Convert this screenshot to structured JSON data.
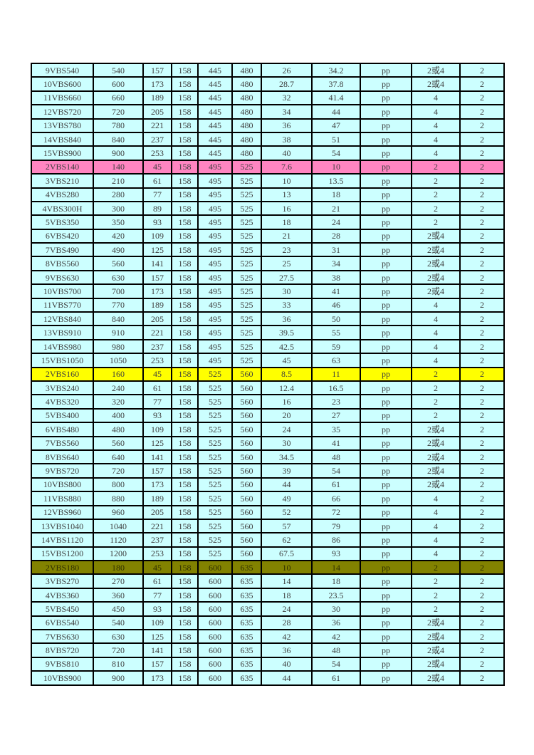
{
  "colors": {
    "cell_background": "#ccffff",
    "highlight_pink": "#ff85c1",
    "highlight_yellow": "#ffff00",
    "highlight_olive": "#828200",
    "border": "#000000",
    "text": "#3e3e3e",
    "page_background": "#ffffff"
  },
  "table": {
    "rows": [
      {
        "highlight": "none",
        "cells": [
          "9VBS540",
          "540",
          "157",
          "158",
          "445",
          "480",
          "26",
          "34.2",
          "pp",
          "2或4",
          "2"
        ]
      },
      {
        "highlight": "none",
        "cells": [
          "10VBS600",
          "600",
          "173",
          "158",
          "445",
          "480",
          "28.7",
          "37.8",
          "pp",
          "2或4",
          "2"
        ]
      },
      {
        "highlight": "none",
        "cells": [
          "11VBS660",
          "660",
          "189",
          "158",
          "445",
          "480",
          "32",
          "41.4",
          "pp",
          "4",
          "2"
        ]
      },
      {
        "highlight": "none",
        "cells": [
          "12VBS720",
          "720",
          "205",
          "158",
          "445",
          "480",
          "34",
          "44",
          "pp",
          "4",
          "2"
        ]
      },
      {
        "highlight": "none",
        "cells": [
          "13VBS780",
          "780",
          "221",
          "158",
          "445",
          "480",
          "36",
          "47",
          "pp",
          "4",
          "2"
        ]
      },
      {
        "highlight": "none",
        "cells": [
          "14VBS840",
          "840",
          "237",
          "158",
          "445",
          "480",
          "38",
          "51",
          "pp",
          "4",
          "2"
        ]
      },
      {
        "highlight": "none",
        "cells": [
          "15VBS900",
          "900",
          "253",
          "158",
          "445",
          "480",
          "40",
          "54",
          "pp",
          "4",
          "2"
        ]
      },
      {
        "highlight": "pink",
        "cells": [
          "2VBS140",
          "140",
          "45",
          "158",
          "495",
          "525",
          "7.6",
          "10",
          "pp",
          "2",
          "2"
        ]
      },
      {
        "highlight": "none",
        "cells": [
          "3VBS210",
          "210",
          "61",
          "158",
          "495",
          "525",
          "10",
          "13.5",
          "pp",
          "2",
          "2"
        ]
      },
      {
        "highlight": "none",
        "cells": [
          "4VBS280",
          "280",
          "77",
          "158",
          "495",
          "525",
          "13",
          "18",
          "pp",
          "2",
          "2"
        ]
      },
      {
        "highlight": "none",
        "cells": [
          "4VBS300H",
          "300",
          "89",
          "158",
          "495",
          "525",
          "16",
          "21",
          "pp",
          "2",
          "2"
        ]
      },
      {
        "highlight": "none",
        "cells": [
          "5VBS350",
          "350",
          "93",
          "158",
          "495",
          "525",
          "18",
          "24",
          "pp",
          "2",
          "2"
        ]
      },
      {
        "highlight": "none",
        "cells": [
          "6VBS420",
          "420",
          "109",
          "158",
          "495",
          "525",
          "21",
          "28",
          "pp",
          "2或4",
          "2"
        ]
      },
      {
        "highlight": "none",
        "cells": [
          "7VBS490",
          "490",
          "125",
          "158",
          "495",
          "525",
          "23",
          "31",
          "pp",
          "2或4",
          "2"
        ]
      },
      {
        "highlight": "none",
        "cells": [
          "8VBS560",
          "560",
          "141",
          "158",
          "495",
          "525",
          "25",
          "34",
          "pp",
          "2或4",
          "2"
        ]
      },
      {
        "highlight": "none",
        "cells": [
          "9VBS630",
          "630",
          "157",
          "158",
          "495",
          "525",
          "27.5",
          "38",
          "pp",
          "2或4",
          "2"
        ]
      },
      {
        "highlight": "none",
        "cells": [
          "10VBS700",
          "700",
          "173",
          "158",
          "495",
          "525",
          "30",
          "41",
          "pp",
          "2或4",
          "2"
        ]
      },
      {
        "highlight": "none",
        "cells": [
          "11VBS770",
          "770",
          "189",
          "158",
          "495",
          "525",
          "33",
          "46",
          "pp",
          "4",
          "2"
        ]
      },
      {
        "highlight": "none",
        "cells": [
          "12VBS840",
          "840",
          "205",
          "158",
          "495",
          "525",
          "36",
          "50",
          "pp",
          "4",
          "2"
        ]
      },
      {
        "highlight": "none",
        "cells": [
          "13VBS910",
          "910",
          "221",
          "158",
          "495",
          "525",
          "39.5",
          "55",
          "pp",
          "4",
          "2"
        ]
      },
      {
        "highlight": "none",
        "cells": [
          "14VBS980",
          "980",
          "237",
          "158",
          "495",
          "525",
          "42.5",
          "59",
          "pp",
          "4",
          "2"
        ]
      },
      {
        "highlight": "none",
        "cells": [
          "15VBS1050",
          "1050",
          "253",
          "158",
          "495",
          "525",
          "45",
          "63",
          "pp",
          "4",
          "2"
        ]
      },
      {
        "highlight": "yellow",
        "cells": [
          "2VBS160",
          "160",
          "45",
          "158",
          "525",
          "560",
          "8.5",
          "11",
          "pp",
          "2",
          "2"
        ]
      },
      {
        "highlight": "none",
        "cells": [
          "3VBS240",
          "240",
          "61",
          "158",
          "525",
          "560",
          "12.4",
          "16.5",
          "pp",
          "2",
          "2"
        ]
      },
      {
        "highlight": "none",
        "cells": [
          "4VBS320",
          "320",
          "77",
          "158",
          "525",
          "560",
          "16",
          "23",
          "pp",
          "2",
          "2"
        ]
      },
      {
        "highlight": "none",
        "cells": [
          "5VBS400",
          "400",
          "93",
          "158",
          "525",
          "560",
          "20",
          "27",
          "pp",
          "2",
          "2"
        ]
      },
      {
        "highlight": "none",
        "cells": [
          "6VBS480",
          "480",
          "109",
          "158",
          "525",
          "560",
          "24",
          "35",
          "pp",
          "2或4",
          "2"
        ]
      },
      {
        "highlight": "none",
        "cells": [
          "7VBS560",
          "560",
          "125",
          "158",
          "525",
          "560",
          "30",
          "41",
          "pp",
          "2或4",
          "2"
        ]
      },
      {
        "highlight": "none",
        "cells": [
          "8VBS640",
          "640",
          "141",
          "158",
          "525",
          "560",
          "34.5",
          "48",
          "pp",
          "2或4",
          "2"
        ]
      },
      {
        "highlight": "none",
        "cells": [
          "9VBS720",
          "720",
          "157",
          "158",
          "525",
          "560",
          "39",
          "54",
          "pp",
          "2或4",
          "2"
        ]
      },
      {
        "highlight": "none",
        "cells": [
          "10VBS800",
          "800",
          "173",
          "158",
          "525",
          "560",
          "44",
          "61",
          "pp",
          "2或4",
          "2"
        ]
      },
      {
        "highlight": "none",
        "cells": [
          "11VBS880",
          "880",
          "189",
          "158",
          "525",
          "560",
          "49",
          "66",
          "pp",
          "4",
          "2"
        ]
      },
      {
        "highlight": "none",
        "cells": [
          "12VBS960",
          "960",
          "205",
          "158",
          "525",
          "560",
          "52",
          "72",
          "pp",
          "4",
          "2"
        ]
      },
      {
        "highlight": "none",
        "cells": [
          "13VBS1040",
          "1040",
          "221",
          "158",
          "525",
          "560",
          "57",
          "79",
          "pp",
          "4",
          "2"
        ]
      },
      {
        "highlight": "none",
        "cells": [
          "14VBS1120",
          "1120",
          "237",
          "158",
          "525",
          "560",
          "62",
          "86",
          "pp",
          "4",
          "2"
        ]
      },
      {
        "highlight": "none",
        "cells": [
          "15VBS1200",
          "1200",
          "253",
          "158",
          "525",
          "560",
          "67.5",
          "93",
          "pp",
          "4",
          "2"
        ]
      },
      {
        "highlight": "olive",
        "cells": [
          "2VBS180",
          "180",
          "45",
          "158",
          "600",
          "635",
          "10",
          "14",
          "pp",
          "2",
          "2"
        ]
      },
      {
        "highlight": "none",
        "cells": [
          "3VBS270",
          "270",
          "61",
          "158",
          "600",
          "635",
          "14",
          "18",
          "pp",
          "2",
          "2"
        ]
      },
      {
        "highlight": "none",
        "cells": [
          "4VBS360",
          "360",
          "77",
          "158",
          "600",
          "635",
          "18",
          "23.5",
          "pp",
          "2",
          "2"
        ]
      },
      {
        "highlight": "none",
        "cells": [
          "5VBS450",
          "450",
          "93",
          "158",
          "600",
          "635",
          "24",
          "30",
          "pp",
          "2",
          "2"
        ]
      },
      {
        "highlight": "none",
        "cells": [
          "6VBS540",
          "540",
          "109",
          "158",
          "600",
          "635",
          "28",
          "36",
          "pp",
          "2或4",
          "2"
        ]
      },
      {
        "highlight": "none",
        "cells": [
          "7VBS630",
          "630",
          "125",
          "158",
          "600",
          "635",
          "42",
          "42",
          "pp",
          "2或4",
          "2"
        ]
      },
      {
        "highlight": "none",
        "cells": [
          "8VBS720",
          "720",
          "141",
          "158",
          "600",
          "635",
          "36",
          "48",
          "pp",
          "2或4",
          "2"
        ]
      },
      {
        "highlight": "none",
        "cells": [
          "9VBS810",
          "810",
          "157",
          "158",
          "600",
          "635",
          "40",
          "54",
          "pp",
          "2或4",
          "2"
        ]
      },
      {
        "highlight": "none",
        "cells": [
          "10VBS900",
          "900",
          "173",
          "158",
          "600",
          "635",
          "44",
          "61",
          "pp",
          "2或4",
          "2"
        ]
      }
    ]
  }
}
